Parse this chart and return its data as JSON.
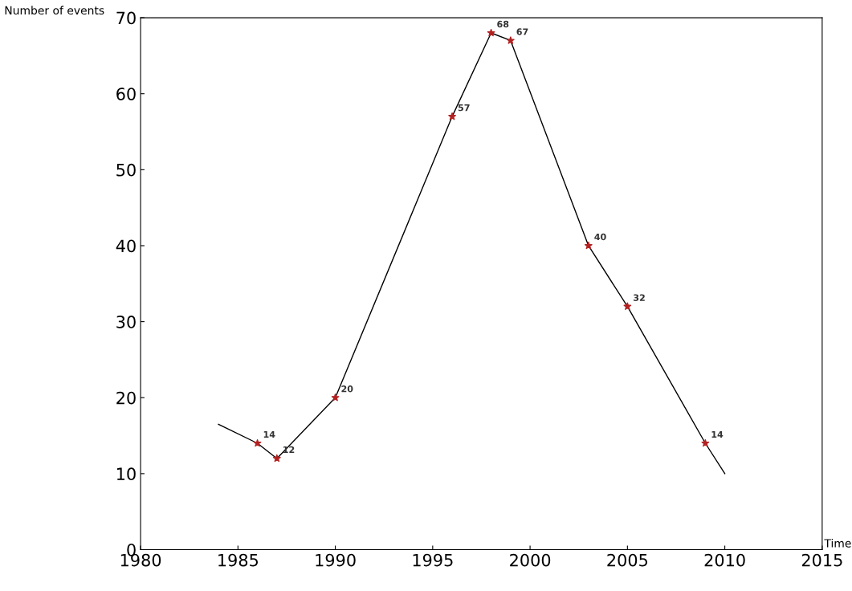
{
  "chart_data": {
    "type": "line",
    "xlabel": "Time",
    "ylabel": "Number of events",
    "xlim": [
      1980,
      2015
    ],
    "xticks": [
      1980,
      1985,
      1990,
      1995,
      2000,
      2005,
      2010,
      2015
    ],
    "ylim": [
      0,
      70
    ],
    "yticks": [
      0,
      10,
      20,
      30,
      40,
      50,
      60,
      70
    ],
    "grid": false,
    "legend": false,
    "series": [
      {
        "color": "#000000",
        "marker": "none",
        "line_style": "solid",
        "x": [
          1984,
          1986,
          1987,
          1990,
          1996,
          1998,
          1999,
          2003,
          2005,
          2009,
          2010
        ],
        "values": [
          16.5,
          14,
          12,
          20,
          57,
          68,
          67,
          40,
          32,
          14,
          10
        ]
      },
      {
        "type": "scatter",
        "color": "#b22222",
        "marker": "star",
        "data_labels": true,
        "x": [
          1986,
          1987,
          1990,
          1996,
          1998,
          1999,
          2003,
          2005,
          2009
        ],
        "values": [
          14,
          12,
          20,
          57,
          68,
          67,
          40,
          32,
          14
        ]
      }
    ]
  }
}
